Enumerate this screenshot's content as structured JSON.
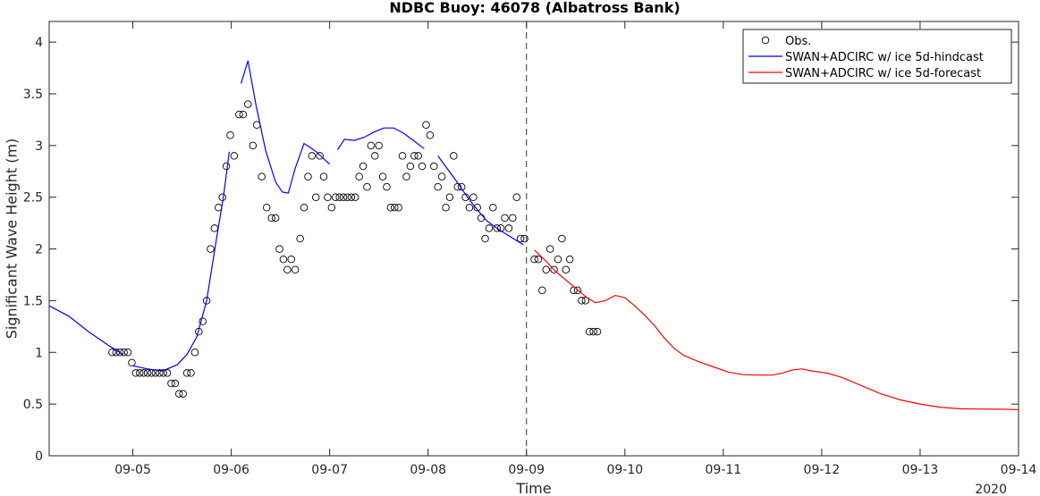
{
  "chart_data": {
    "type": "line",
    "title": "NDBC Buoy: 46078 (Albatross Bank)",
    "xlabel": "Time",
    "ylabel": "Significant Wave Height (m)",
    "x_year_label": "2020",
    "xlim": [
      4.15,
      14.0
    ],
    "ylim": [
      0,
      4.2
    ],
    "x_ticks": [
      5,
      6,
      7,
      8,
      9,
      10,
      11,
      12,
      13,
      14
    ],
    "x_tick_labels": [
      "09-05",
      "09-06",
      "09-07",
      "09-08",
      "09-09",
      "09-10",
      "09-11",
      "09-12",
      "09-13",
      "09-14"
    ],
    "y_ticks": [
      0,
      0.5,
      1,
      1.5,
      2,
      2.5,
      3,
      3.5,
      4
    ],
    "y_tick_labels": [
      "0",
      "0.5",
      "1",
      "1.5",
      "2",
      "2.5",
      "3",
      "3.5",
      "4"
    ],
    "grid": false,
    "legend_position": "top-right",
    "vline_x": 9.0,
    "series": [
      {
        "name": "Obs.",
        "kind": "marker",
        "color": "#000000",
        "points": [
          [
            4.79,
            1.0
          ],
          [
            4.83,
            1.0
          ],
          [
            4.87,
            1.0
          ],
          [
            4.91,
            1.0
          ],
          [
            4.95,
            1.0
          ],
          [
            4.99,
            0.9
          ],
          [
            5.03,
            0.8
          ],
          [
            5.07,
            0.8
          ],
          [
            5.11,
            0.8
          ],
          [
            5.15,
            0.8
          ],
          [
            5.19,
            0.8
          ],
          [
            5.23,
            0.8
          ],
          [
            5.27,
            0.8
          ],
          [
            5.31,
            0.8
          ],
          [
            5.35,
            0.8
          ],
          [
            5.39,
            0.7
          ],
          [
            5.43,
            0.7
          ],
          [
            5.47,
            0.6
          ],
          [
            5.51,
            0.6
          ],
          [
            5.55,
            0.8
          ],
          [
            5.59,
            0.8
          ],
          [
            5.63,
            1.0
          ],
          [
            5.67,
            1.2
          ],
          [
            5.71,
            1.3
          ],
          [
            5.75,
            1.5
          ],
          [
            5.79,
            2.0
          ],
          [
            5.83,
            2.2
          ],
          [
            5.87,
            2.4
          ],
          [
            5.91,
            2.5
          ],
          [
            5.95,
            2.8
          ],
          [
            5.99,
            3.1
          ],
          [
            6.03,
            2.9
          ],
          [
            6.08,
            3.3
          ],
          [
            6.12,
            3.3
          ],
          [
            6.17,
            3.4
          ],
          [
            6.22,
            3.0
          ],
          [
            6.26,
            3.2
          ],
          [
            6.31,
            2.7
          ],
          [
            6.36,
            2.4
          ],
          [
            6.41,
            2.3
          ],
          [
            6.45,
            2.3
          ],
          [
            6.49,
            2.0
          ],
          [
            6.53,
            1.9
          ],
          [
            6.57,
            1.8
          ],
          [
            6.61,
            1.9
          ],
          [
            6.65,
            1.8
          ],
          [
            6.7,
            2.1
          ],
          [
            6.74,
            2.4
          ],
          [
            6.78,
            2.7
          ],
          [
            6.82,
            2.9
          ],
          [
            6.86,
            2.5
          ],
          [
            6.9,
            2.9
          ],
          [
            6.94,
            2.7
          ],
          [
            6.98,
            2.5
          ],
          [
            7.02,
            2.4
          ],
          [
            7.06,
            2.5
          ],
          [
            7.1,
            2.5
          ],
          [
            7.14,
            2.5
          ],
          [
            7.18,
            2.5
          ],
          [
            7.22,
            2.5
          ],
          [
            7.26,
            2.5
          ],
          [
            7.3,
            2.7
          ],
          [
            7.34,
            2.8
          ],
          [
            7.38,
            2.6
          ],
          [
            7.42,
            3.0
          ],
          [
            7.46,
            2.9
          ],
          [
            7.5,
            3.0
          ],
          [
            7.54,
            2.7
          ],
          [
            7.58,
            2.6
          ],
          [
            7.62,
            2.4
          ],
          [
            7.66,
            2.4
          ],
          [
            7.7,
            2.4
          ],
          [
            7.74,
            2.9
          ],
          [
            7.78,
            2.7
          ],
          [
            7.82,
            2.8
          ],
          [
            7.86,
            2.9
          ],
          [
            7.9,
            2.9
          ],
          [
            7.94,
            2.8
          ],
          [
            7.98,
            3.2
          ],
          [
            8.02,
            3.1
          ],
          [
            8.06,
            2.8
          ],
          [
            8.1,
            2.6
          ],
          [
            8.14,
            2.7
          ],
          [
            8.18,
            2.4
          ],
          [
            8.22,
            2.5
          ],
          [
            8.26,
            2.9
          ],
          [
            8.3,
            2.6
          ],
          [
            8.34,
            2.6
          ],
          [
            8.38,
            2.5
          ],
          [
            8.42,
            2.4
          ],
          [
            8.46,
            2.5
          ],
          [
            8.5,
            2.4
          ],
          [
            8.54,
            2.3
          ],
          [
            8.58,
            2.1
          ],
          [
            8.62,
            2.2
          ],
          [
            8.66,
            2.4
          ],
          [
            8.7,
            2.2
          ],
          [
            8.74,
            2.2
          ],
          [
            8.78,
            2.3
          ],
          [
            8.82,
            2.2
          ],
          [
            8.86,
            2.3
          ],
          [
            8.9,
            2.5
          ],
          [
            8.94,
            2.1
          ],
          [
            8.98,
            2.1
          ],
          [
            9.08,
            1.9
          ],
          [
            9.12,
            1.9
          ],
          [
            9.16,
            1.6
          ],
          [
            9.2,
            1.8
          ],
          [
            9.24,
            2.0
          ],
          [
            9.28,
            1.8
          ],
          [
            9.32,
            1.9
          ],
          [
            9.36,
            2.1
          ],
          [
            9.4,
            1.8
          ],
          [
            9.44,
            1.9
          ],
          [
            9.48,
            1.6
          ],
          [
            9.52,
            1.6
          ],
          [
            9.56,
            1.5
          ],
          [
            9.6,
            1.5
          ],
          [
            9.64,
            1.2
          ],
          [
            9.68,
            1.2
          ],
          [
            9.72,
            1.2
          ]
        ]
      },
      {
        "name": "SWAN+ADCIRC w/ ice 5d-hindcast",
        "kind": "line",
        "color": "#0000ff",
        "segments": [
          [
            [
              4.15,
              1.45
            ],
            [
              4.35,
              1.35
            ],
            [
              4.55,
              1.2
            ],
            [
              4.75,
              1.07
            ],
            [
              4.9,
              0.98
            ]
          ],
          [
            [
              5.0,
              0.87
            ],
            [
              5.15,
              0.84
            ],
            [
              5.3,
              0.82
            ],
            [
              5.45,
              0.88
            ],
            [
              5.55,
              0.98
            ],
            [
              5.65,
              1.15
            ],
            [
              5.75,
              1.5
            ],
            [
              5.85,
              2.1
            ],
            [
              5.92,
              2.5
            ],
            [
              5.98,
              2.94
            ]
          ],
          [
            [
              6.1,
              3.6
            ],
            [
              6.17,
              3.82
            ],
            [
              6.25,
              3.4
            ],
            [
              6.35,
              2.95
            ],
            [
              6.45,
              2.65
            ],
            [
              6.52,
              2.55
            ],
            [
              6.58,
              2.54
            ],
            [
              6.65,
              2.78
            ],
            [
              6.74,
              3.02
            ],
            [
              6.85,
              2.95
            ],
            [
              7.0,
              2.82
            ]
          ],
          [
            [
              7.08,
              2.96
            ],
            [
              7.15,
              3.06
            ],
            [
              7.25,
              3.05
            ],
            [
              7.35,
              3.08
            ],
            [
              7.45,
              3.13
            ],
            [
              7.55,
              3.17
            ],
            [
              7.65,
              3.17
            ],
            [
              7.75,
              3.12
            ],
            [
              7.85,
              3.05
            ],
            [
              7.96,
              2.97
            ]
          ],
          [
            [
              8.1,
              2.9
            ],
            [
              8.2,
              2.77
            ],
            [
              8.3,
              2.64
            ],
            [
              8.4,
              2.5
            ],
            [
              8.5,
              2.38
            ],
            [
              8.6,
              2.27
            ],
            [
              8.7,
              2.2
            ],
            [
              8.8,
              2.14
            ],
            [
              8.9,
              2.08
            ],
            [
              8.97,
              2.04
            ]
          ]
        ]
      },
      {
        "name": "SWAN+ADCIRC w/ ice 5d-forecast",
        "kind": "line",
        "color": "#ff0000",
        "segments": [
          [
            [
              9.08,
              1.99
            ],
            [
              9.2,
              1.88
            ],
            [
              9.3,
              1.78
            ],
            [
              9.4,
              1.7
            ],
            [
              9.5,
              1.62
            ],
            [
              9.6,
              1.54
            ],
            [
              9.7,
              1.48
            ],
            [
              9.8,
              1.5
            ],
            [
              9.9,
              1.55
            ],
            [
              10.0,
              1.53
            ],
            [
              10.1,
              1.45
            ],
            [
              10.2,
              1.36
            ],
            [
              10.3,
              1.26
            ],
            [
              10.4,
              1.14
            ],
            [
              10.5,
              1.04
            ],
            [
              10.6,
              0.97
            ],
            [
              10.75,
              0.91
            ],
            [
              10.9,
              0.86
            ],
            [
              11.05,
              0.81
            ],
            [
              11.2,
              0.785
            ],
            [
              11.35,
              0.78
            ],
            [
              11.5,
              0.78
            ],
            [
              11.6,
              0.8
            ],
            [
              11.7,
              0.83
            ],
            [
              11.8,
              0.84
            ],
            [
              11.9,
              0.82
            ],
            [
              12.05,
              0.8
            ],
            [
              12.2,
              0.76
            ],
            [
              12.4,
              0.68
            ],
            [
              12.6,
              0.6
            ],
            [
              12.8,
              0.54
            ],
            [
              13.0,
              0.5
            ],
            [
              13.2,
              0.47
            ],
            [
              13.4,
              0.455
            ],
            [
              13.6,
              0.452
            ],
            [
              13.8,
              0.45
            ],
            [
              14.0,
              0.447
            ]
          ]
        ]
      }
    ]
  }
}
